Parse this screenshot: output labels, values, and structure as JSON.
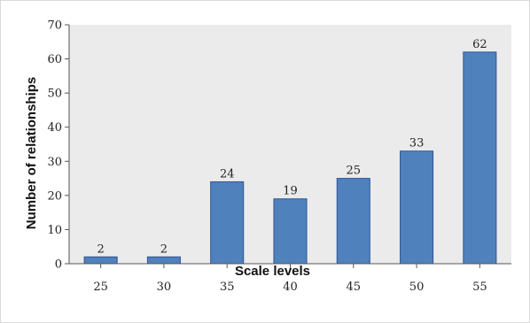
{
  "chart_data": {
    "type": "bar",
    "categories": [
      "25",
      "30",
      "35",
      "40",
      "45",
      "50",
      "55"
    ],
    "values": [
      2,
      2,
      24,
      19,
      25,
      33,
      62
    ],
    "data_labels": [
      "2",
      "2",
      "24",
      "19",
      "25",
      "33",
      "62"
    ],
    "title": "",
    "xlabel": "Scale levels",
    "ylabel": "Number of relationships",
    "ylim": [
      0,
      70
    ],
    "yticks": [
      "0",
      "10",
      "20",
      "30",
      "40",
      "50",
      "60",
      "70"
    ],
    "grid": false,
    "legend": "none",
    "colors": {
      "bar_fill": "#4f81bd",
      "bar_stroke": "#2f5597",
      "plot_background": "#ebebeb"
    }
  }
}
